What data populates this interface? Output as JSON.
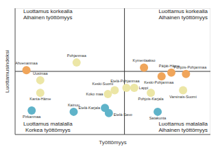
{
  "chart_data": {
    "type": "scatter",
    "x_label": "Työttömyys",
    "y_label": "Luottamusindeksi",
    "xlim": [
      0,
      100
    ],
    "ylim": [
      0,
      100
    ],
    "xticks": [],
    "yticks": [],
    "tick_labels": false,
    "grid": false,
    "crosshair": {
      "x": 56,
      "y": 50
    },
    "quadrants": {
      "top_left": [
        "Luottamus korkealla",
        "Alhainen työttömyys"
      ],
      "top_right": [
        "Luottamus korkealla",
        "Alhainen työttömyys"
      ],
      "bottom_left": [
        "Luottamus matalalla",
        "Korkea työttömyys"
      ],
      "bottom_right": [
        "Luottamus matalalla",
        "Alhainen työttömyys"
      ]
    },
    "names": [
      "Ahvenanmaa",
      "Pohjanmaa",
      "Uusimaa",
      "Kanta-Häme",
      "Pirkanmaa",
      "Kainuu",
      "Keski-Suomi",
      "Etelä-Pohjanmaa",
      "Lappi",
      "Koko maa",
      "Etelä-Karjala",
      "Etelä-Savo",
      "Pohjois-Karjala",
      "Satakunta",
      "Kymenlaakso",
      "Keski-Pohjanmaa",
      "Päijät-Häme",
      "Pohjois-Pohjanmaa",
      "Varsinais-Suomi"
    ],
    "x": [
      5.8,
      31.5,
      12.9,
      12.9,
      8.5,
      30,
      51,
      57,
      61,
      47.5,
      46,
      48,
      69.5,
      73,
      66,
      75,
      80,
      87.5,
      86
    ],
    "y": [
      51,
      57,
      43,
      33,
      19,
      18,
      35,
      37,
      37,
      32,
      21,
      17,
      33,
      18,
      53,
      46,
      49,
      48,
      35
    ],
    "colors": [
      "#f0a55a",
      "#ece6a6",
      "#ece6a6",
      "#ece6a6",
      "#5fb3c9",
      "#5fb3c9",
      "#ece6a6",
      "#ece6a6",
      "#ece6a6",
      "#ece6a6",
      "#5fb3c9",
      "#5fb3c9",
      "#ece6a6",
      "#5fb3c9",
      "#f0a55a",
      "#f0a55a",
      "#f0a55a",
      "#f0a55a",
      "#ece6a6"
    ]
  }
}
